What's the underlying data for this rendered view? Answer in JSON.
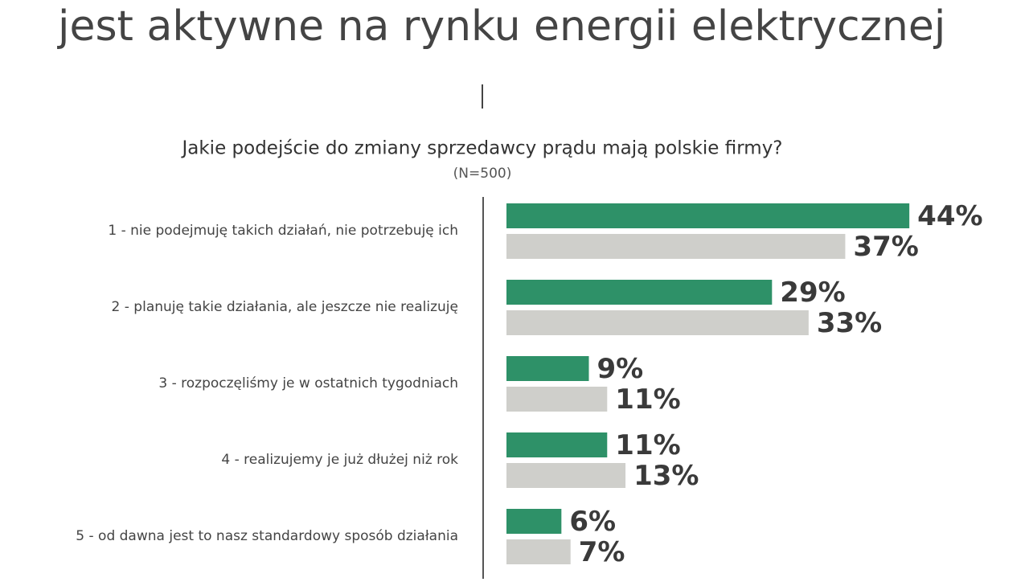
{
  "chart_data": {
    "type": "bar",
    "orientation": "horizontal",
    "title": "jest aktywne na rynku energii elektrycznej",
    "subtitle": "Jakie podejście do zmiany sprzedawcy prądu mają polskie firmy?",
    "note": "(N=500)",
    "categories": [
      "1 - nie podejmuję takich działań, nie potrzebuję ich",
      "2 - planuję takie działania, ale jeszcze nie realizuję",
      "3 - rozpoczęliśmy je w ostatnich tygodniach",
      "4 - realizujemy je już dłużej niż rok",
      "5 - od dawna jest to nasz standardowy sposób działania"
    ],
    "series": [
      {
        "color": "#2e9168",
        "values": [
          44,
          29,
          9,
          11,
          6
        ],
        "value_labels": [
          "44%",
          "29%",
          "9%",
          "11%",
          "6%"
        ]
      },
      {
        "color": "#cfcfcb",
        "values": [
          37,
          33,
          11,
          13,
          7
        ],
        "value_labels": [
          "37%",
          "33%",
          "11%",
          "13%",
          "7%"
        ]
      }
    ]
  }
}
